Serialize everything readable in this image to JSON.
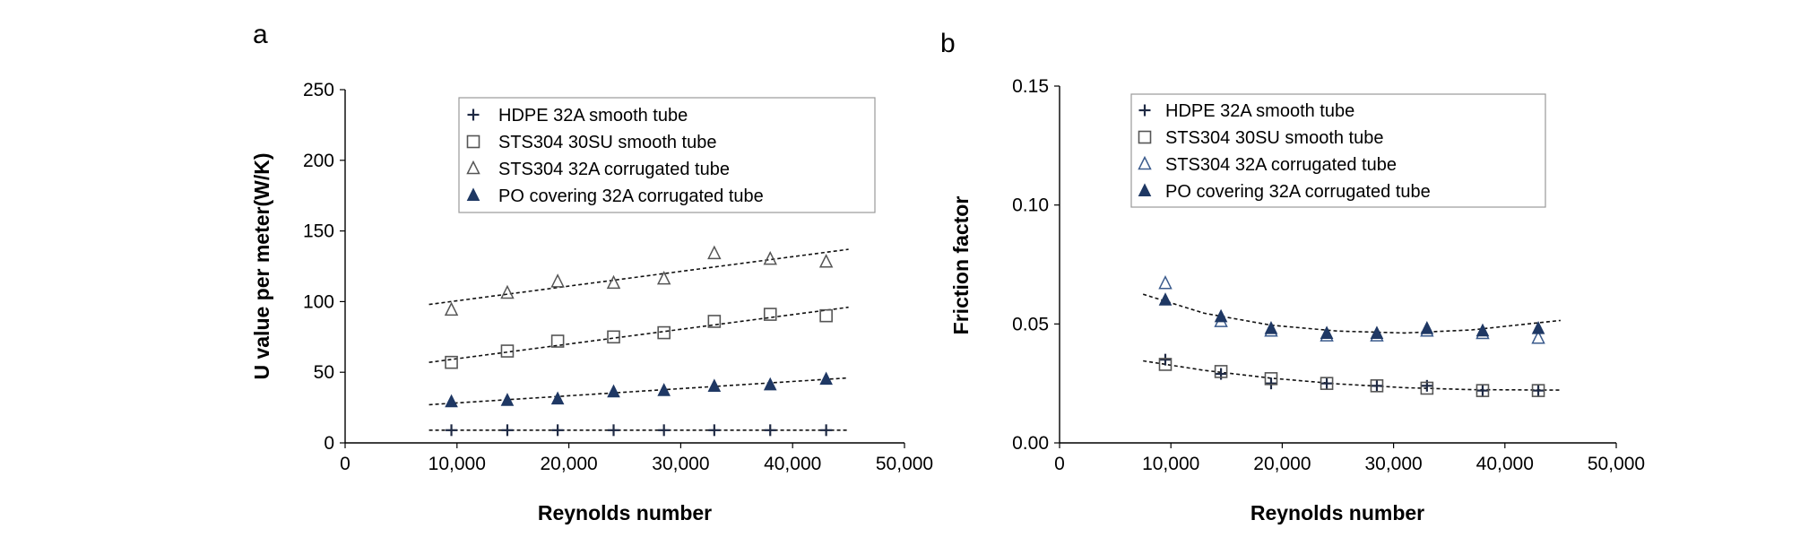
{
  "chart_data": [
    {
      "type": "scatter",
      "panel_label": "a",
      "xlabel": "Reynolds number",
      "ylabel": "U value per meter(W/K)",
      "xlim": [
        0,
        50000
      ],
      "ylim": [
        0,
        250
      ],
      "x_ticks": [
        0,
        10000,
        20000,
        30000,
        40000,
        50000
      ],
      "y_ticks": [
        0,
        50,
        100,
        150,
        200,
        250
      ],
      "x_tick_labels": [
        "0",
        "10,000",
        "20,000",
        "30,000",
        "40,000",
        "50,000"
      ],
      "y_tick_labels": [
        "0",
        "50",
        "100",
        "150",
        "200",
        "250"
      ],
      "legend_position": "top-right",
      "grid": false,
      "series": [
        {
          "name": "HDPE 32A smooth tube",
          "marker": "plus",
          "color": "#1f2a44",
          "x": [
            9500,
            14500,
            19000,
            24000,
            28500,
            33000,
            38000,
            43000
          ],
          "y": [
            9,
            9,
            9,
            9,
            9,
            9,
            9,
            9
          ],
          "trend": {
            "x": [
              7500,
              45000
            ],
            "y": [
              9,
              9
            ]
          }
        },
        {
          "name": "STS304 30SU smooth tube",
          "marker": "square-open",
          "color": "#555555",
          "x": [
            9500,
            14500,
            19000,
            24000,
            28500,
            33000,
            38000,
            43000
          ],
          "y": [
            57,
            65,
            72,
            75,
            78,
            86,
            91,
            90
          ],
          "trend": {
            "x": [
              7500,
              45000
            ],
            "y": [
              57,
              96
            ]
          }
        },
        {
          "name": "STS304 32A corrugated tube",
          "marker": "triangle-open",
          "color": "#555555",
          "x": [
            9500,
            14500,
            19000,
            24000,
            28500,
            33000,
            38000,
            43000
          ],
          "y": [
            94,
            106,
            114,
            113,
            116,
            134,
            130,
            128
          ],
          "trend": {
            "x": [
              7500,
              45000
            ],
            "y": [
              98,
              137
            ]
          }
        },
        {
          "name": "PO covering 32A corrugated tube",
          "marker": "triangle-filled",
          "color": "#1f3864",
          "x": [
            9500,
            14500,
            19000,
            24000,
            28500,
            33000,
            38000,
            43000
          ],
          "y": [
            29,
            30,
            31,
            36,
            37,
            40,
            41,
            45
          ],
          "trend": {
            "x": [
              7500,
              45000
            ],
            "y": [
              27,
              46
            ]
          }
        }
      ]
    },
    {
      "type": "scatter",
      "panel_label": "b",
      "xlabel": "Reynolds number",
      "ylabel": "Friction factor",
      "xlim": [
        0,
        50000
      ],
      "ylim": [
        0,
        0.15
      ],
      "x_ticks": [
        0,
        10000,
        20000,
        30000,
        40000,
        50000
      ],
      "y_ticks": [
        0,
        0.05,
        0.1,
        0.15
      ],
      "x_tick_labels": [
        "0",
        "10,000",
        "20,000",
        "30,000",
        "40,000",
        "50,000"
      ],
      "y_tick_labels": [
        "0.00",
        "0.05",
        "0.10",
        "0.15"
      ],
      "legend_position": "top-right",
      "grid": false,
      "series": [
        {
          "name": "HDPE 32A smooth tube",
          "marker": "plus",
          "color": "#1f2a44",
          "x": [
            9500,
            14500,
            19000,
            24000,
            28500,
            33000,
            38000,
            43000
          ],
          "y": [
            0.035,
            0.029,
            0.025,
            0.025,
            0.024,
            0.024,
            0.022,
            0.022
          ],
          "trend": {
            "x": [
              7500,
              13000,
              19000,
              25000,
              31000,
              37000,
              45000
            ],
            "y": [
              0.0345,
              0.0305,
              0.0272,
              0.0248,
              0.0232,
              0.0224,
              0.0222
            ]
          }
        },
        {
          "name": "STS304 30SU smooth tube",
          "marker": "square-open",
          "color": "#555555",
          "x": [
            9500,
            14500,
            19000,
            24000,
            28500,
            33000,
            38000,
            43000
          ],
          "y": [
            0.033,
            0.03,
            0.027,
            0.025,
            0.024,
            0.023,
            0.022,
            0.022
          ],
          "trend": null
        },
        {
          "name": "STS304 32A corrugated tube",
          "marker": "triangle-open",
          "color": "#3a5a8c",
          "x": [
            9500,
            14500,
            19000,
            24000,
            28500,
            33000,
            38000,
            43000
          ],
          "y": [
            0.067,
            0.051,
            0.047,
            0.045,
            0.045,
            0.047,
            0.046,
            0.044
          ],
          "trend": null
        },
        {
          "name": "PO covering 32A corrugated tube",
          "marker": "triangle-filled",
          "color": "#1f3864",
          "x": [
            9500,
            14500,
            19000,
            24000,
            28500,
            33000,
            38000,
            43000
          ],
          "y": [
            0.06,
            0.053,
            0.048,
            0.046,
            0.046,
            0.048,
            0.047,
            0.048
          ],
          "trend": {
            "x": [
              7500,
              13000,
              19000,
              25000,
              31000,
              37000,
              45000
            ],
            "y": [
              0.0625,
              0.0545,
              0.0495,
              0.047,
              0.0462,
              0.0475,
              0.0515
            ]
          }
        }
      ]
    }
  ]
}
